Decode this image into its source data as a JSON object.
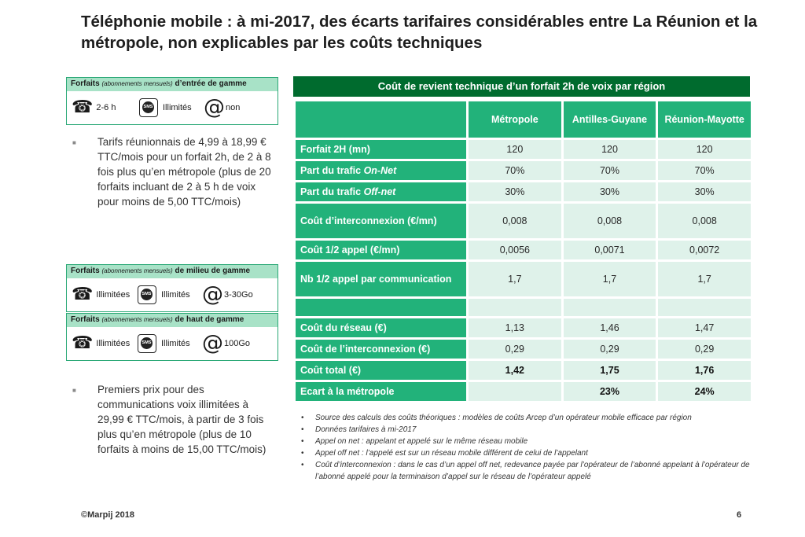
{
  "title": "Téléphonie mobile : à mi-2017, des écarts tarifaires considérables entre La Réunion et la métropole, non explicables par les coûts techniques",
  "plans": [
    {
      "bold_prefix": "Forfaits",
      "italic_note": "(abonnements mensuels)",
      "bold_suffix": "d’entrée de gamme",
      "voice": "2-6 h",
      "sms_icon_text": "SMS",
      "sms": "Illimités",
      "data": "non"
    },
    {
      "bold_prefix": "Forfaits",
      "italic_note": "(abonnements mensuels)",
      "bold_suffix": "de milieu de gamme",
      "voice": "Illimitées",
      "sms_icon_text": "SMS",
      "sms": "Illimités",
      "data": "3-30Go"
    },
    {
      "bold_prefix": "Forfaits",
      "italic_note": "(abonnements mensuels)",
      "bold_suffix": "de haut de gamme",
      "voice": "Illimitées",
      "sms_icon_text": "SMS",
      "sms": "Illimités",
      "data": "100Go"
    }
  ],
  "bullets": [
    "Tarifs réunionnais de 4,99 à 18,99 € TTC/mois pour un forfait 2h, de 2 à 8 fois plus qu’en métropole (plus de 20 forfaits incluant de 2 à 5 h de voix pour moins de 5,00 TTC/mois)",
    "Premiers prix pour des communications voix illimitées à 29,99 € TTC/mois, à partir de 3 fois plus qu’en métropole (plus de 10 forfaits à moins de 15,00 TTC/mois)"
  ],
  "table": {
    "title": "Coût de revient technique d’un forfait 2h de voix par région",
    "columns": [
      "Métropole",
      "Antilles-Guyane",
      "Réunion-Mayotte"
    ],
    "rows": [
      {
        "label": "Forfait 2H (mn)",
        "values": [
          "120",
          "120",
          "120"
        ]
      },
      {
        "label_pre": "Part du trafic ",
        "label_it": "On-Net",
        "values": [
          "70%",
          "70%",
          "70%"
        ]
      },
      {
        "label_pre": "Part du trafic ",
        "label_it": "Off-net",
        "values": [
          "30%",
          "30%",
          "30%"
        ]
      },
      {
        "label": "Coût d’interconnexion (€/mn)",
        "values": [
          "0,008",
          "0,008",
          "0,008"
        ]
      },
      {
        "label": "Coût 1/2 appel (€/mn)",
        "values": [
          "0,0056",
          "0,0071",
          "0,0072"
        ]
      },
      {
        "label": "Nb 1/2 appel par communication",
        "values": [
          "1,7",
          "1,7",
          "1,7"
        ]
      },
      {
        "label": "",
        "values": [
          "",
          "",
          ""
        ]
      },
      {
        "label": "Coût du réseau (€)",
        "values": [
          "1,13",
          "1,46",
          "1,47"
        ]
      },
      {
        "label": "Coût de l’interconnexion (€)",
        "values": [
          "0,29",
          "0,29",
          "0,29"
        ]
      },
      {
        "label": "Coût total (€)",
        "values": [
          "1,42",
          "1,75",
          "1,76"
        ]
      },
      {
        "label": "Ecart à la métropole",
        "values": [
          "",
          "23%",
          "24%"
        ]
      }
    ]
  },
  "notes": [
    "Source des calculs des coûts théoriques : modèles de coûts Arcep d’un opérateur mobile efficace par région",
    "Données tarifaires à mi-2017",
    "Appel on net : appelant et appelé sur le même réseau mobile",
    "Appel off net : l’appelé est sur un réseau mobile différent de celui de l’appelant",
    "Coût d’interconnexion : dans le cas d’un appel off net, redevance payée par l’opérateur de l’abonné appelant à l’opérateur de l’abonné appelé pour la terminaison d’appel sur le réseau de l’opérateur appelé"
  ],
  "footer": {
    "copyright": "©Marpij 2018",
    "page": "6"
  },
  "colors": {
    "dark_green": "#006b2e",
    "green": "#22b27a",
    "light_green": "#dff2ea",
    "plan_header": "#a8e2c7"
  },
  "icons": {
    "voice": "phone-icon",
    "sms": "sms-icon",
    "data": "at-icon"
  }
}
